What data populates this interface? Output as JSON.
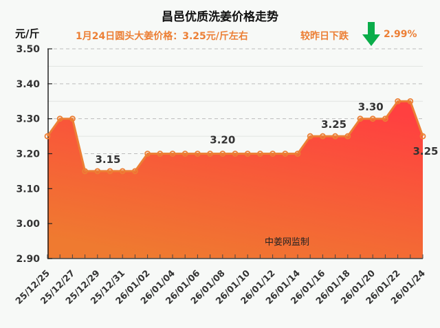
{
  "header": {
    "title": "昌邑优质洗姜价格走势",
    "unit": "元/斤",
    "subtitle": "1月24日圆头大姜价格：3.25元/斤左右",
    "change_label": "较昨日下跌",
    "change_icon": "down-arrow-icon",
    "change_pct": "2.99%"
  },
  "watermark": "中姜网监制",
  "colors": {
    "line": "#ec7f35",
    "area_top": "#ff4040",
    "area_bottom": "#ef7a30",
    "arrow": "#0aad4a",
    "accent_text": "#ec7f35"
  },
  "chart_data": {
    "type": "area",
    "title": "昌邑优质洗姜价格走势",
    "subtitle": "1月24日圆头大姜价格：3.25元/斤左右",
    "xlabel": "",
    "ylabel": "元/斤",
    "ylim": [
      2.9,
      3.5
    ],
    "yticks": [
      "3.50",
      "3.40",
      "3.30",
      "3.20",
      "3.10",
      "3.00",
      "2.90"
    ],
    "grid": true,
    "x": [
      "25/12/25",
      "25/12/26",
      "25/12/27",
      "25/12/28",
      "25/12/29",
      "25/12/30",
      "25/12/31",
      "26/01/01",
      "26/01/02",
      "26/01/03",
      "26/01/04",
      "26/01/05",
      "26/01/06",
      "26/01/07",
      "26/01/08",
      "26/01/09",
      "26/01/10",
      "26/01/11",
      "26/01/12",
      "26/01/13",
      "26/01/14",
      "26/01/15",
      "26/01/16",
      "26/01/17",
      "26/01/18",
      "26/01/19",
      "26/01/20",
      "26/01/21",
      "26/01/22",
      "26/01/23",
      "26/01/24"
    ],
    "xtick_labels": [
      "25/12/25",
      "25/12/27",
      "25/12/29",
      "25/12/31",
      "26/01/02",
      "26/01/04",
      "26/01/06",
      "26/01/08",
      "26/01/10",
      "26/01/12",
      "26/01/14",
      "26/01/16",
      "26/01/18",
      "26/01/20",
      "26/01/22",
      "26/01/24"
    ],
    "series": [
      {
        "name": "昌邑优质洗姜价格",
        "values": [
          3.25,
          3.3,
          3.3,
          3.15,
          3.15,
          3.15,
          3.15,
          3.15,
          3.2,
          3.2,
          3.2,
          3.2,
          3.2,
          3.2,
          3.2,
          3.2,
          3.2,
          3.2,
          3.2,
          3.2,
          3.2,
          3.25,
          3.25,
          3.25,
          3.25,
          3.3,
          3.3,
          3.3,
          3.35,
          3.35,
          3.25
        ]
      }
    ],
    "annotations": [
      {
        "text": "3.15",
        "index": 5
      },
      {
        "text": "3.20",
        "index": 14
      },
      {
        "text": "3.25",
        "index": 23
      },
      {
        "text": "3.30",
        "index": 26
      },
      {
        "text": "3.25",
        "index": 30
      }
    ],
    "change": {
      "label": "较昨日下跌",
      "pct": "2.99%"
    }
  }
}
